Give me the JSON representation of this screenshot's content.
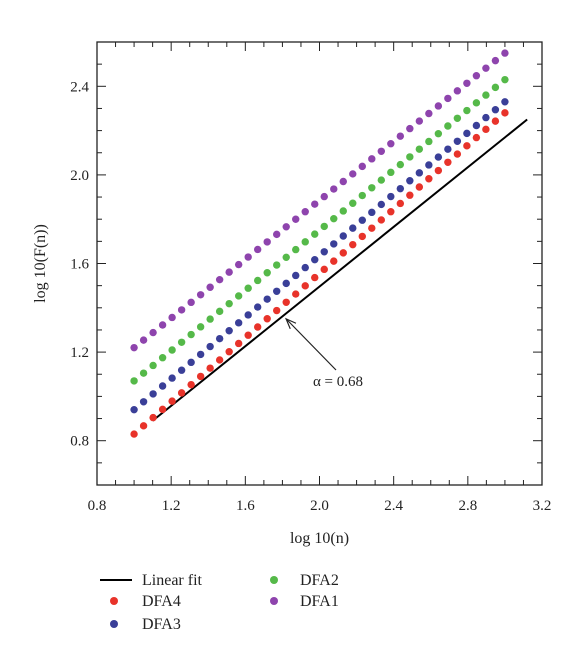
{
  "chart_data": {
    "type": "scatter",
    "xlabel": "log 10(n)",
    "ylabel": "log 10(F(n))",
    "xlim": [
      0.8,
      3.2
    ],
    "ylim": [
      0.6,
      2.6
    ],
    "xticks": [
      0.8,
      1.2,
      1.6,
      2.0,
      2.4,
      2.8,
      3.2
    ],
    "yticks": [
      0.8,
      1.2,
      1.6,
      2.0,
      2.4
    ],
    "xtick_labels": [
      "0.8",
      "1.2",
      "1.6",
      "2.0",
      "2.4",
      "2.8",
      "3.2"
    ],
    "ytick_labels": [
      "0.8",
      "1.2",
      "1.6",
      "2.0",
      "2.4"
    ],
    "grid": false,
    "legend_placement": "below",
    "annotation": {
      "text": "α = 0.68",
      "arrow_to": [
        1.82,
        1.35
      ]
    },
    "fit_line": {
      "name": "Linear fit",
      "x": [
        1.1,
        3.12
      ],
      "y": [
        0.89,
        2.25
      ],
      "slope": 0.68,
      "color": "#000000"
    },
    "series": [
      {
        "name": "DFA4",
        "color": "#e8332a",
        "x_start": 1.0,
        "x_end": 3.0,
        "count": 40,
        "y_start": 0.83,
        "y_end": 2.28
      },
      {
        "name": "DFA3",
        "color": "#3a3f98",
        "x_start": 1.0,
        "x_end": 3.0,
        "count": 40,
        "y_start": 0.94,
        "y_end": 2.33
      },
      {
        "name": "DFA2",
        "color": "#55b949",
        "x_start": 1.0,
        "x_end": 3.0,
        "count": 40,
        "y_start": 1.07,
        "y_end": 2.43
      },
      {
        "name": "DFA1",
        "color": "#8e44ad",
        "x_start": 1.0,
        "x_end": 3.0,
        "count": 40,
        "y_start": 1.22,
        "y_end": 2.55
      }
    ]
  }
}
